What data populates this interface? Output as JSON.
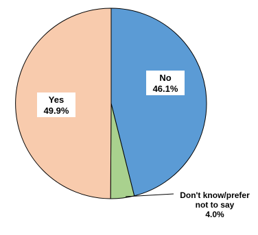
{
  "chart_data": {
    "type": "pie",
    "slices": [
      {
        "key": "no",
        "category": "No",
        "value": 46.1,
        "value_label": "46.1%",
        "color": "#5b9bd5"
      },
      {
        "key": "dk",
        "category": "Don't know/prefer not to say",
        "category_lines": [
          "Don't know/prefer",
          "not to say"
        ],
        "value": 4.0,
        "value_label": "4.0%",
        "color": "#a9d18e"
      },
      {
        "key": "yes",
        "category": "Yes",
        "value": 49.9,
        "value_label": "49.9%",
        "color": "#f8cbad"
      }
    ],
    "start_angle": "12 o'clock",
    "direction": "clockwise",
    "outline_color": "#000000"
  }
}
